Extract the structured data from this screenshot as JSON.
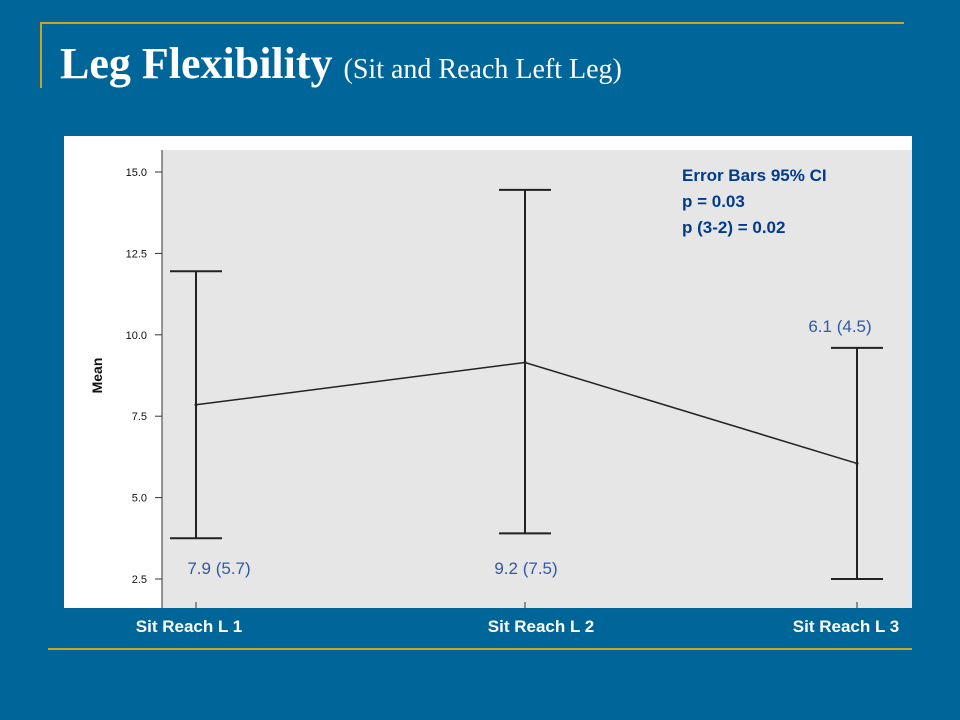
{
  "slide": {
    "title": "Leg Flexibility",
    "subtitle": "(Sit and Reach Left Leg)"
  },
  "colors": {
    "background": "#006699",
    "accent_rule": "#c9a227",
    "plot_area": "#e6e6e6",
    "annotation_text": "#003b8e",
    "value_label_text": "#2e5aa8"
  },
  "chart_data": {
    "type": "line",
    "ylabel": "Mean",
    "ylim": [
      2.5,
      15.0
    ],
    "yticks": [
      "2.5",
      "5.0",
      "7.5",
      "10.0",
      "12.5",
      "15.0"
    ],
    "categories": [
      "Sit Reach L 1",
      "Sit Reach L 2",
      "Sit Reach L 3"
    ],
    "series": [
      {
        "values": [
          7.85,
          9.15,
          6.05
        ],
        "ci_low": [
          3.75,
          3.9,
          2.5
        ],
        "ci_high": [
          11.95,
          14.45,
          9.6
        ]
      }
    ],
    "value_labels": [
      "7.9 (5.7)",
      "9.2 (7.5)",
      "6.1 (4.5)"
    ],
    "annotations": [
      "Error Bars 95% CI",
      "p = 0.03",
      "p (3-2) = 0.02"
    ],
    "grid": false
  }
}
